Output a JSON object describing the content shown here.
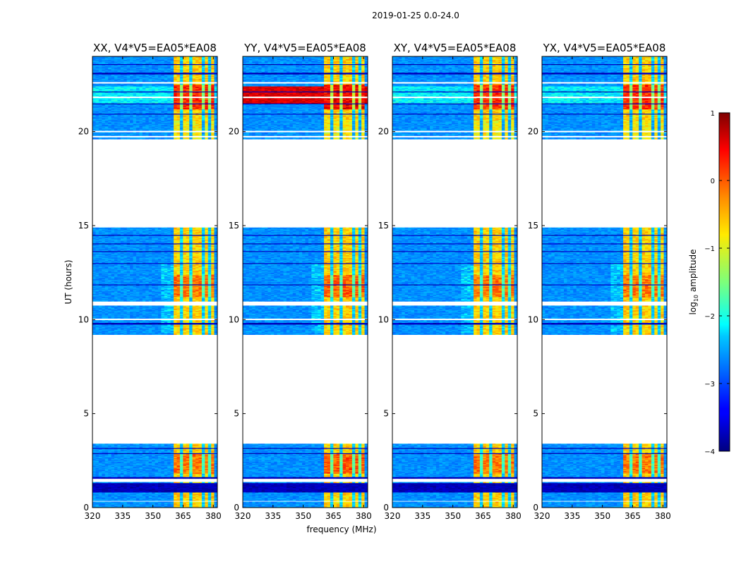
{
  "chart_data": {
    "type": "heatmap",
    "suptitle": "2019-01-25 0.0-24.0",
    "xlabel": "frequency (MHz)",
    "ylabel": "UT (hours)",
    "x_range": [
      320,
      382
    ],
    "y_range": [
      0,
      24
    ],
    "x_ticks": [
      "320",
      "335",
      "350",
      "365",
      "380"
    ],
    "y_ticks": [
      "0",
      "5",
      "10",
      "15",
      "20"
    ],
    "colorbar": {
      "label": "log10 amplitude",
      "label_main": "log",
      "label_sub": "10",
      "label_rest": " amplitude",
      "range": [
        -4,
        1
      ],
      "ticks": [
        "1",
        "0",
        "−1",
        "−2",
        "−3",
        "−4"
      ]
    },
    "panels": [
      {
        "title": "XX, V4*V5=EA05*EA08",
        "band_strength": 1.0
      },
      {
        "title": "YY, V4*V5=EA05*EA08",
        "band_strength": 1.25
      },
      {
        "title": "XY, V4*V5=EA05*EA08",
        "band_strength": 0.95
      },
      {
        "title": "YX, V4*V5=EA05*EA08",
        "band_strength": 0.95
      }
    ],
    "data_segments_ut": [
      [
        0.0,
        3.4
      ],
      [
        9.2,
        14.9
      ],
      [
        19.6,
        24.0
      ]
    ],
    "hot_band_mhz": [
      360,
      380
    ],
    "blanked_ut": [
      [
        0.3,
        0.38
      ],
      [
        1.35,
        1.55
      ],
      [
        9.95,
        10.05
      ],
      [
        10.75,
        10.95
      ],
      [
        19.7,
        19.78
      ],
      [
        19.95,
        20.05
      ],
      [
        21.78,
        21.86
      ],
      [
        22.55,
        22.65
      ]
    ],
    "dark_rows_ut": [
      [
        0.82,
        1.3
      ],
      [
        1.55,
        1.62
      ],
      [
        2.85,
        2.92
      ],
      [
        3.15,
        3.2
      ],
      [
        9.75,
        9.82
      ],
      [
        11.85,
        11.9
      ],
      [
        12.95,
        13.0
      ],
      [
        13.6,
        13.65
      ],
      [
        14.0,
        14.05
      ],
      [
        14.45,
        14.5
      ],
      [
        20.9,
        20.96
      ],
      [
        21.45,
        21.5
      ],
      [
        22.12,
        22.16
      ],
      [
        23.05,
        23.15
      ],
      [
        23.55,
        23.62
      ]
    ],
    "column_breaks_mhz": [
      364.5,
      369.5,
      374.5,
      378.5
    ]
  }
}
